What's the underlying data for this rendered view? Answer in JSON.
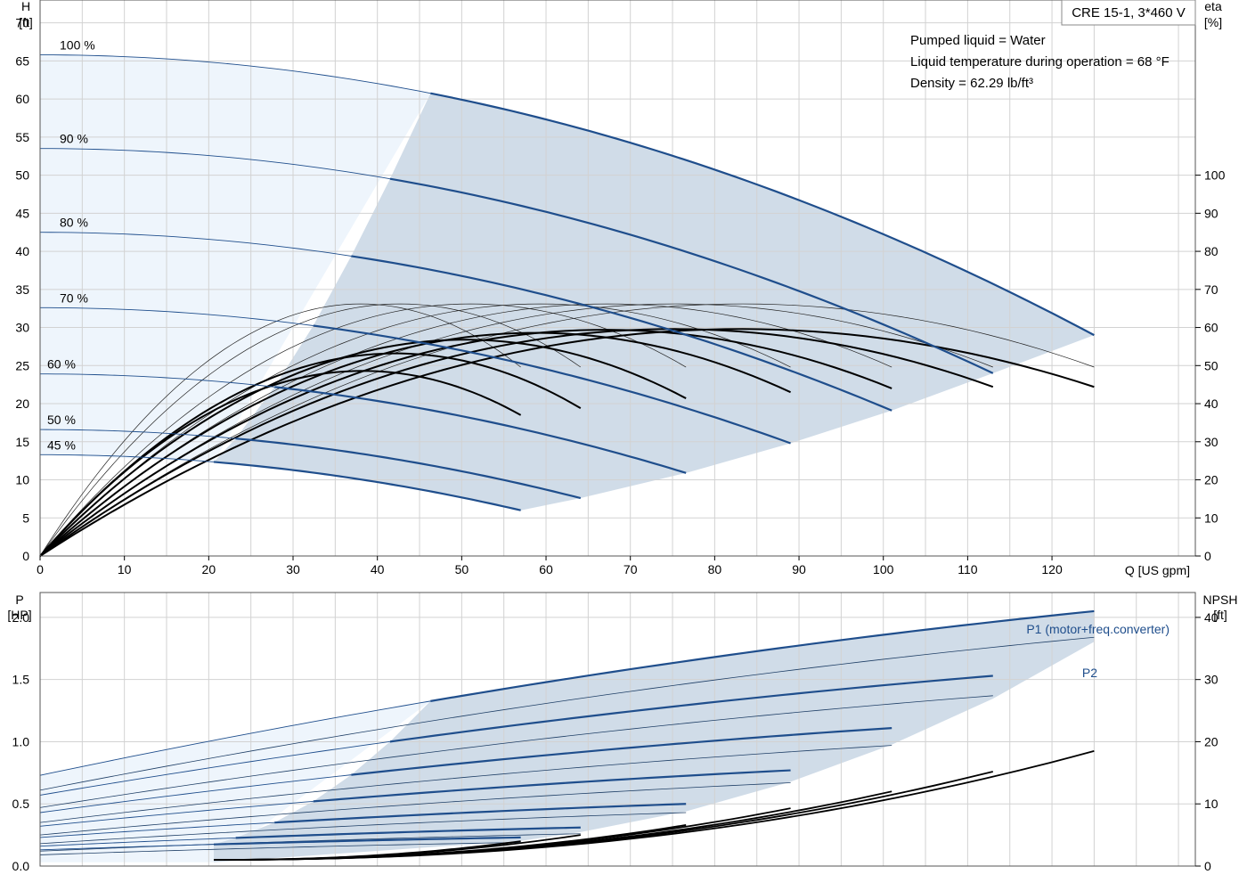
{
  "model_box": "CRE 15-1, 3*460 V",
  "info_lines": [
    "Pumped liquid = Water",
    "Liquid temperature during operation = 68 °F",
    "Density = 62.29 lb/ft³"
  ],
  "colors": {
    "curve_blue": "#1f4e8c",
    "area_fill": "#d0dce8",
    "light_fill": "#eef5fc",
    "grid": "#d2d2d2"
  },
  "chart_data": [
    {
      "type": "line",
      "panel": "head-efficiency",
      "y_left": {
        "title": "H",
        "unit": "[ft]",
        "range": [
          0,
          73
        ],
        "ticks": [
          0,
          5,
          10,
          15,
          20,
          25,
          30,
          35,
          40,
          45,
          50,
          55,
          60,
          65,
          70
        ]
      },
      "y_right": {
        "title": "eta",
        "unit": "[%]",
        "range": [
          0,
          146
        ],
        "ticks": [
          0,
          10,
          20,
          30,
          40,
          50,
          60,
          70,
          80,
          90,
          100
        ]
      },
      "x": {
        "title": "Q [US gpm]",
        "range": [
          0,
          137
        ],
        "ticks": [
          0,
          10,
          20,
          30,
          40,
          50,
          60,
          70,
          80,
          90,
          100,
          110,
          120
        ]
      },
      "grid": true,
      "speeds": [
        {
          "label": "100 %",
          "pct": 100,
          "h0": 65.8,
          "qmax": 125,
          "hend": 29.0,
          "qmin": 46.3,
          "eta_max": 66.2,
          "eta_end": 49.6,
          "eta_bold": 59.6,
          "eta_bold_end": 44.4
        },
        {
          "label": "90 %",
          "pct": 90,
          "h0": 53.5,
          "qmax": 113,
          "hend": 24.0,
          "qmin": 41.5,
          "eta_max": 66.2,
          "eta_end": 49.6,
          "eta_bold": 59.6,
          "eta_bold_end": 44.4
        },
        {
          "label": "80 %",
          "pct": 80,
          "h0": 42.5,
          "qmax": 101,
          "hend": 19.1,
          "qmin": 36.9,
          "eta_max": 66.2,
          "eta_end": 49.6,
          "eta_bold": 59.4,
          "eta_bold_end": 44.0
        },
        {
          "label": "70 %",
          "pct": 70,
          "h0": 32.6,
          "qmax": 89,
          "hend": 14.8,
          "qmin": 32.4,
          "eta_max": 66.2,
          "eta_end": 49.6,
          "eta_bold": 58.6,
          "eta_bold_end": 43.0
        },
        {
          "label": "60 %",
          "pct": 60,
          "h0": 23.9,
          "qmax": 76.6,
          "hend": 10.9,
          "qmin": 27.8,
          "eta_max": 66.2,
          "eta_end": 49.6,
          "eta_bold": 56.8,
          "eta_bold_end": 41.4
        },
        {
          "label": "50 %",
          "pct": 50,
          "h0": 16.6,
          "qmax": 64.1,
          "hend": 7.6,
          "qmin": 23.2,
          "eta_max": 66.2,
          "eta_end": 49.6,
          "eta_bold": 53.2,
          "eta_bold_end": 38.8
        },
        {
          "label": "45 %",
          "pct": 45,
          "h0": 13.3,
          "qmax": 57,
          "hend": 6.0,
          "qmin": 20.6,
          "eta_max": 66.2,
          "eta_end": 49.6,
          "eta_bold": 48.6,
          "eta_bold_end": 37.0
        }
      ]
    },
    {
      "type": "line",
      "panel": "power-npsh",
      "y_left": {
        "title": "P",
        "unit": "[HP]",
        "range": [
          0,
          2.2
        ],
        "ticks": [
          0.0,
          0.5,
          1.0,
          1.5,
          2.0
        ]
      },
      "y_right": {
        "title": "NPSH",
        "unit": "[ft]",
        "range": [
          0,
          44
        ],
        "ticks": [
          0,
          10,
          20,
          30,
          40
        ]
      },
      "x": {
        "range": [
          0,
          137
        ]
      },
      "grid": true,
      "series_labels": {
        "p1": "P1 (motor+freq.converter)",
        "p2": "P2"
      },
      "p1_series": [
        {
          "pct": 100,
          "qmax": 125,
          "p0": 0.73,
          "pend": 2.05
        },
        {
          "pct": 90,
          "qmax": 113,
          "p0": 0.57,
          "pend": 1.53
        },
        {
          "pct": 80,
          "qmax": 101,
          "p0": 0.43,
          "pend": 1.11
        },
        {
          "pct": 70,
          "qmax": 89,
          "p0": 0.32,
          "pend": 0.77
        },
        {
          "pct": 60,
          "qmax": 76.6,
          "p0": 0.23,
          "pend": 0.5
        },
        {
          "pct": 50,
          "qmax": 64.1,
          "p0": 0.16,
          "pend": 0.31
        },
        {
          "pct": 45,
          "qmax": 57,
          "p0": 0.13,
          "pend": 0.23
        }
      ],
      "p2_series": [
        {
          "pct": 100,
          "qmax": 125,
          "p0": 0.61,
          "pend": 1.84
        },
        {
          "pct": 90,
          "qmax": 113,
          "p0": 0.47,
          "pend": 1.37
        },
        {
          "pct": 80,
          "qmax": 101,
          "p0": 0.35,
          "pend": 0.97
        },
        {
          "pct": 70,
          "qmax": 89,
          "p0": 0.25,
          "pend": 0.67
        },
        {
          "pct": 60,
          "qmax": 76.6,
          "p0": 0.18,
          "pend": 0.43
        },
        {
          "pct": 50,
          "qmax": 64.1,
          "p0": 0.12,
          "pend": 0.26
        },
        {
          "pct": 45,
          "qmax": 57,
          "p0": 0.09,
          "pend": 0.19
        }
      ],
      "npsh_series": [
        {
          "pct": 100,
          "qmax": 125,
          "nend": 18.5
        },
        {
          "pct": 90,
          "qmax": 113,
          "nend": 15.2
        },
        {
          "pct": 80,
          "qmax": 101,
          "nend": 12.0
        },
        {
          "pct": 70,
          "qmax": 89,
          "nend": 9.3
        },
        {
          "pct": 60,
          "qmax": 76.6,
          "nend": 6.6
        },
        {
          "pct": 50,
          "qmax": 64.1,
          "nend": 5.0
        },
        {
          "pct": 45,
          "qmax": 57,
          "nend": 4.0
        }
      ]
    }
  ]
}
